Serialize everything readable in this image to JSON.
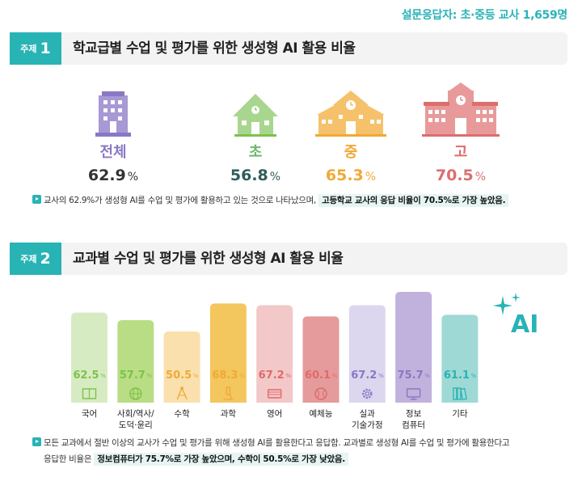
{
  "survey_note": "설문응답자: 초·중등 교사 1,659명",
  "section1": {
    "tag_word": "주제",
    "tag_num": "1",
    "title": "학교급별 수업 및 평가를 위한 생성형 AI 활용 비율",
    "schools": [
      {
        "label": "전체",
        "value": "62.9",
        "unit": "%",
        "color": "#8a78c4",
        "icon": "office-building-icon"
      },
      {
        "label": "초",
        "value": "56.8",
        "unit": "%",
        "color": "#6cb86a",
        "icon": "elementary-school-icon"
      },
      {
        "label": "중",
        "value": "65.3",
        "unit": "%",
        "color": "#f0a935",
        "icon": "middle-school-icon"
      },
      {
        "label": "고",
        "value": "70.5",
        "unit": "%",
        "color": "#dc6e6e",
        "icon": "high-school-icon"
      }
    ],
    "note_text": "교사의 62.9%가 생성형 AI를 수업 및 평가에 활용하고 있는 것으로 나타났으며,",
    "note_highlight": "고등학교 교사의 응답 비율이 70.5%로 가장 높았음."
  },
  "section2": {
    "tag_word": "주제",
    "tag_num": "2",
    "title": "교과별 수업 및 평가를 위한 생성형 AI 활용 비율",
    "ai_badge": "AI",
    "note_line1": "모든 교과에서 절반 이상의 교사가 수업 및 평가를 위해 생성형 AI를 활용한다고 응답함. 교과별로 생성형 AI를 수업 및 평가에 활용한다고",
    "note_line2_prefix": "응답한 비율은",
    "note_highlight": "정보컴퓨터가 75.7%로 가장 높았으며, 수학이 50.5%로 가장 낮았음."
  },
  "chart_data": {
    "type": "bar",
    "title": "교과별 수업 및 평가를 위한 생성형 AI 활용 비율",
    "categories": [
      "국어",
      "사회/역사/도덕·윤리",
      "수학",
      "과학",
      "영어",
      "예체능",
      "실과 기술가정",
      "정보 컴퓨터",
      "기타"
    ],
    "category_lines": [
      [
        "국어"
      ],
      [
        "사회/역사/",
        "도덕·윤리"
      ],
      [
        "수학"
      ],
      [
        "과학"
      ],
      [
        "영어"
      ],
      [
        "예체능"
      ],
      [
        "실과",
        "기술가정"
      ],
      [
        "정보",
        "컴퓨터"
      ],
      [
        "기타"
      ]
    ],
    "values": [
      62.5,
      57.7,
      50.5,
      68.3,
      67.2,
      60.1,
      67.2,
      75.7,
      61.1
    ],
    "value_labels": [
      "62.5",
      "57.7",
      "50.5",
      "68.3",
      "67.2",
      "60.1",
      "67.2",
      "75.7",
      "61.1"
    ],
    "unit": "%",
    "bar_colors": [
      "#d7ebc3",
      "#b9dd84",
      "#f9e0ad",
      "#f3c65e",
      "#f3c8c8",
      "#e59b9b",
      "#dcd6ee",
      "#c0b2dc",
      "#9fd9d5"
    ],
    "text_colors": [
      "#7cc24a",
      "#7cc24a",
      "#f0a935",
      "#f0a935",
      "#e06b6b",
      "#e06b6b",
      "#8a78c4",
      "#8a78c4",
      "#28b3b5"
    ],
    "icons": [
      "book-icon",
      "globe-icon",
      "compass-icon",
      "microscope-icon",
      "dictionary-icon",
      "ball-icon",
      "gear-icon",
      "monitor-icon",
      "books-icon"
    ]
  }
}
